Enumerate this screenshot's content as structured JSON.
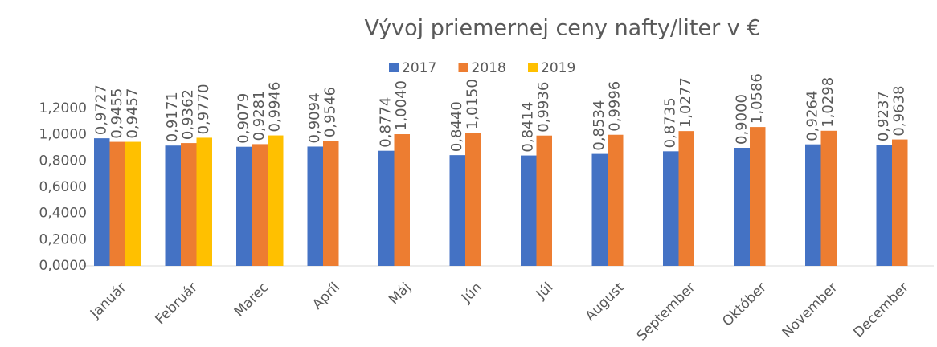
{
  "chart_data": {
    "type": "bar",
    "title": "Vývoj priemernej ceny nafty/liter v €",
    "categories": [
      "Január",
      "Február",
      "Marec",
      "Apríl",
      "Máj",
      "Jún",
      "Júl",
      "August",
      "September",
      "Október",
      "November",
      "December"
    ],
    "series": [
      {
        "name": "2017",
        "color": "#4472c4",
        "values": [
          0.9727,
          0.9171,
          0.9079,
          0.9094,
          0.8774,
          0.844,
          0.8414,
          0.8534,
          0.8735,
          0.9,
          0.9264,
          0.9237
        ],
        "value_labels": [
          "0,9727",
          "0,9171",
          "0,9079",
          "0,9094",
          "0,8774",
          "0,8440",
          "0,8414",
          "0,8534",
          "0,8735",
          "0,9000",
          "0,9264",
          "0,9237"
        ]
      },
      {
        "name": "2018",
        "color": "#ed7d31",
        "values": [
          0.9455,
          0.9362,
          0.9281,
          0.9546,
          1.004,
          1.015,
          0.9936,
          0.9996,
          1.0277,
          1.0586,
          1.0298,
          0.9638
        ],
        "value_labels": [
          "0,9455",
          "0,9362",
          "0,9281",
          "0,9546",
          "1,0040",
          "1,0150",
          "0,9936",
          "0,9996",
          "1,0277",
          "1,0586",
          "1,0298",
          "0,9638"
        ]
      },
      {
        "name": "2019",
        "color": "#ffc000",
        "values": [
          0.9457,
          0.977,
          0.9946,
          null,
          null,
          null,
          null,
          null,
          null,
          null,
          null,
          null
        ],
        "value_labels": [
          "0,9457",
          "0,9770",
          "0,9946",
          null,
          null,
          null,
          null,
          null,
          null,
          null,
          null,
          null
        ]
      }
    ],
    "ylim": [
      0,
      1.2
    ],
    "yticks": [
      {
        "value": 0,
        "label": "0,0000"
      },
      {
        "value": 0.2,
        "label": "0,2000"
      },
      {
        "value": 0.4,
        "label": "0,4000"
      },
      {
        "value": 0.6,
        "label": "0,6000"
      },
      {
        "value": 0.8,
        "label": "0,8000"
      },
      {
        "value": 1.0,
        "label": "1,0000"
      },
      {
        "value": 1.2,
        "label": "1,2000"
      }
    ],
    "grid": false,
    "legend": "top"
  }
}
